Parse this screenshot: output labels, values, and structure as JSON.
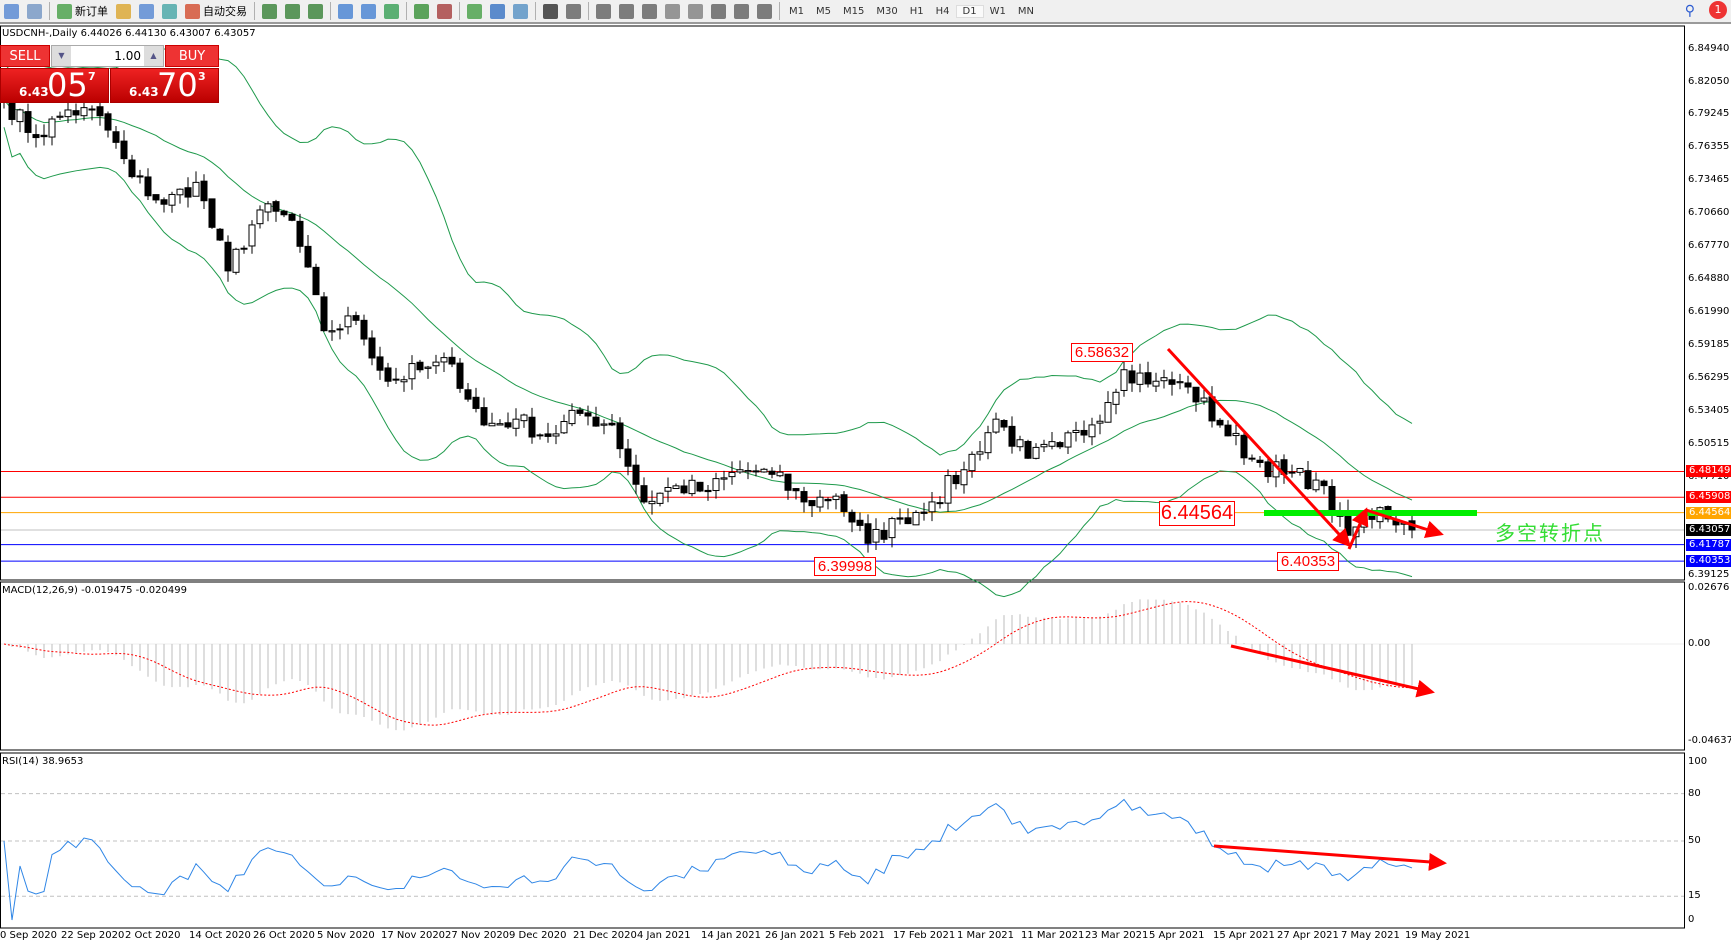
{
  "toolbar": {
    "new_order": "新订单",
    "auto_trade": "自动交易",
    "periods": [
      "M1",
      "M5",
      "M15",
      "M30",
      "H1",
      "H4",
      "D1",
      "W1",
      "MN"
    ],
    "active_period": "D1",
    "notification_count": "1",
    "icons": [
      "document-icon",
      "zoom-print-icon",
      "new-order-icon",
      "pencil-icon",
      "terminal-icon",
      "signal-icon",
      "auto-trade-icon",
      "bar-chart-icon",
      "candlestick-icon",
      "line-chart-icon",
      "zoom-in-icon",
      "zoom-out-icon",
      "tile-windows-icon",
      "autoscroll-icon",
      "chart-shift-icon",
      "indicators-icon",
      "clock-icon",
      "templates-icon",
      "cursor-icon",
      "crosshair-icon",
      "vertical-line-icon",
      "horizontal-line-icon",
      "trendline-icon",
      "fibonacci-icon",
      "fibo-fan-icon",
      "text-icon",
      "text-label-icon",
      "arrows-icon"
    ]
  },
  "symbol_header": "USDCNH-,Daily  6.44026 6.44130 6.43007 6.43057",
  "trade_panel": {
    "sell_label": "SELL",
    "buy_label": "BUY",
    "lot": "1.00",
    "sell_price_prefix": "6.43",
    "sell_price_big": "05",
    "sell_price_sup": "7",
    "buy_price_prefix": "6.43",
    "buy_price_big": "70",
    "buy_price_sup": "3"
  },
  "colors": {
    "bands": "#1f9a4c",
    "sell": "#e02020",
    "macd_signal": "#ff0000",
    "rsi": "#2f86e6",
    "arrow": "#ff0000",
    "pivot_bar": "#00ee00"
  },
  "chart_data": {
    "type": "candlestick",
    "price_axis": [
      "6.84940",
      "6.82050",
      "6.79245",
      "6.76355",
      "6.73465",
      "6.70660",
      "6.67770",
      "6.64880",
      "6.61990",
      "6.59185",
      "6.56295",
      "6.53405",
      "6.50515",
      "6.47710",
      "6.39125"
    ],
    "price_range": [
      6.39125,
      6.8494
    ],
    "approx_closes": [
      6.805,
      6.772,
      6.796,
      6.791,
      6.738,
      6.714,
      6.733,
      6.656,
      6.709,
      6.7,
      6.604,
      6.613,
      6.56,
      6.57,
      6.575,
      6.522,
      6.527,
      6.512,
      6.532,
      6.522,
      6.455,
      6.469,
      6.464,
      6.483,
      6.479,
      6.455,
      6.46,
      6.419,
      6.44,
      6.455,
      6.483,
      6.527,
      6.493,
      6.503,
      6.522,
      6.57,
      6.56,
      6.555,
      6.522,
      6.493,
      6.479,
      6.474,
      6.426,
      6.45,
      6.43057
    ],
    "levels": [
      {
        "value": "6.48149",
        "color": "#ff0000"
      },
      {
        "value": "6.45908",
        "color": "#ff0000"
      },
      {
        "value": "6.44564",
        "color": "#ffa500"
      },
      {
        "value": "6.43057",
        "color": "#000000",
        "line": "#c0c0c0"
      },
      {
        "value": "6.41787",
        "color": "#0000ff"
      },
      {
        "value": "6.40353",
        "color": "#0000ff"
      }
    ],
    "annotations": {
      "high": "6.58632",
      "pivot": "6.44564",
      "low1": "6.39998",
      "low2": "6.40353",
      "pivot_text": "多空转折点"
    },
    "dates": [
      "0 Sep 2020",
      "22 Sep 2020",
      "2 Oct 2020",
      "14 Oct 2020",
      "26 Oct 2020",
      "5 Nov 2020",
      "17 Nov 2020",
      "27 Nov 2020",
      "9 Dec 2020",
      "21 Dec 2020",
      "4 Jan 2021",
      "14 Jan 2021",
      "26 Jan 2021",
      "5 Feb 2021",
      "17 Feb 2021",
      "1 Mar 2021",
      "11 Mar 2021",
      "23 Mar 2021",
      "5 Apr 2021",
      "15 Apr 2021",
      "27 Apr 2021",
      "7 May 2021",
      "19 May 2021"
    ],
    "macd": {
      "label": "MACD(12,26,9) -0.019475 -0.020499",
      "axis": [
        "0.02676",
        "0.00",
        "-0.046374"
      ],
      "range": [
        -0.046374,
        0.02676
      ]
    },
    "rsi": {
      "label": "RSI(14) 38.9653",
      "axis": [
        "100",
        "80",
        "50",
        "15",
        "0"
      ],
      "levels": [
        80,
        50,
        15
      ]
    }
  }
}
